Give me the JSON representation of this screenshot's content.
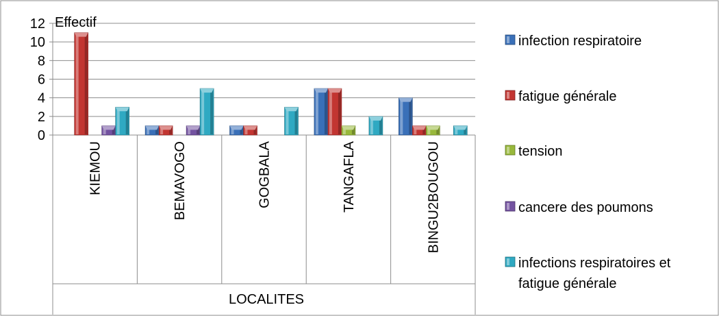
{
  "chart_data": {
    "type": "bar",
    "title": "",
    "ylabel": "Effectif",
    "xlabel": "LOCALITES",
    "categories": [
      "KIEMOU",
      "BEMAVOGO",
      "GOGBALA",
      "TANGAFLA",
      "BINGU2BOUGOU"
    ],
    "ylim": [
      0,
      12
    ],
    "yticks": [
      0,
      2,
      4,
      6,
      8,
      10,
      12
    ],
    "grid": true,
    "legend_position": "right",
    "series": [
      {
        "name": "infection respiratoire",
        "color": "#3a70b8",
        "values": [
          0,
          1,
          1,
          5,
          4
        ]
      },
      {
        "name": "fatigue générale",
        "color": "#c23531",
        "values": [
          11,
          1,
          1,
          5,
          1
        ]
      },
      {
        "name": "tension",
        "color": "#98b83b",
        "values": [
          0,
          0,
          0,
          1,
          1
        ]
      },
      {
        "name": "cancere des poumons",
        "color": "#7352a0",
        "values": [
          1,
          1,
          0,
          0,
          0
        ]
      },
      {
        "name": "infections respiratoires et fatigue générale",
        "color": "#2fa9c2",
        "values": [
          3,
          5,
          3,
          2,
          1
        ]
      }
    ]
  }
}
